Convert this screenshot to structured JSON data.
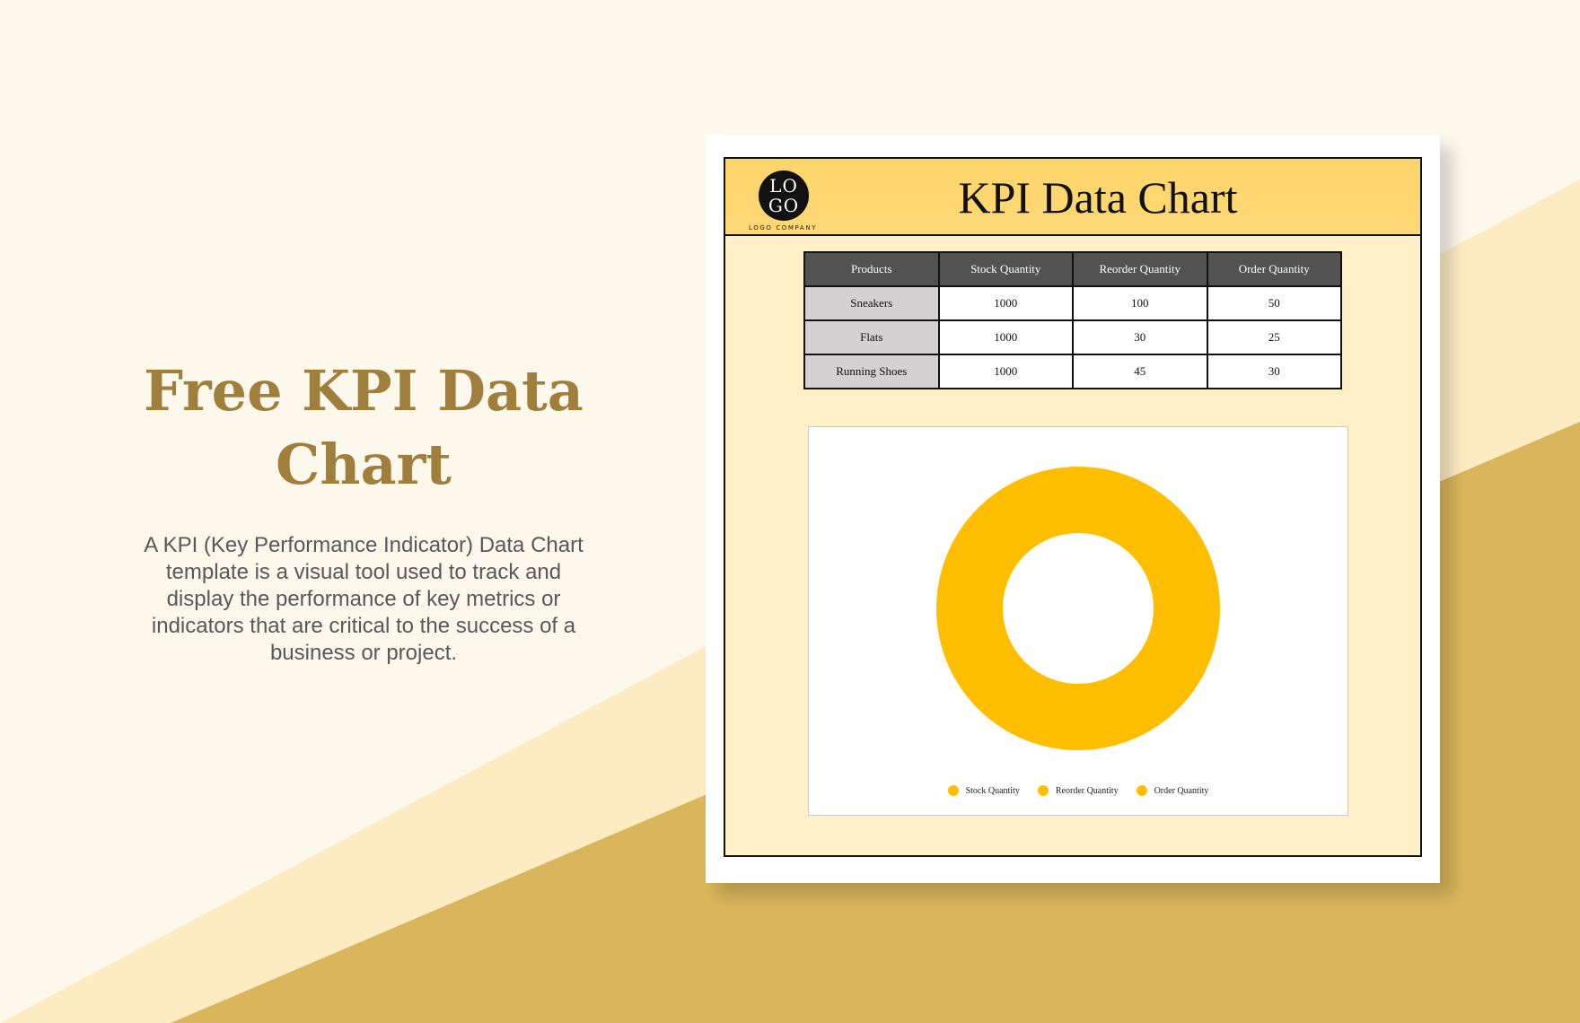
{
  "promo": {
    "title_line1": "Free KPI Data",
    "title_line2": "Chart",
    "description": "A KPI (Key Performance Indicator) Data Chart template is a visual tool used to track and display the performance of key metrics or indicators that are critical to the success of a business or project."
  },
  "colors": {
    "background": "#fdf8ec",
    "accent_gold": "#d9b55b",
    "title_gold": "#a07e3c",
    "header_yellow": "#fed56a",
    "donut_yellow": "#ffbf00"
  },
  "document": {
    "logo_line1": "LO",
    "logo_line2": "GO",
    "logo_company": "LOGO COMPANY",
    "title": "KPI Data Chart"
  },
  "table": {
    "headers": [
      "Products",
      "Stock Quantity",
      "Reorder Quantity",
      "Order Quantity"
    ],
    "rows": [
      {
        "label": "Sneakers",
        "cells": [
          "1000",
          "100",
          "50"
        ]
      },
      {
        "label": "Flats",
        "cells": [
          "1000",
          "30",
          "25"
        ]
      },
      {
        "label": "Running Shoes",
        "cells": [
          "1000",
          "45",
          "30"
        ]
      }
    ]
  },
  "chart_data": {
    "type": "pie",
    "donut": true,
    "categories": [
      "Stock Quantity",
      "Reorder Quantity",
      "Order Quantity"
    ],
    "values": [
      1,
      0,
      0
    ],
    "colors": [
      "#ffbf00",
      "#ffbf00",
      "#ffbf00"
    ],
    "legend_position": "bottom",
    "legend": [
      "Stock Quantity",
      "Reorder Quantity",
      "Order Quantity"
    ]
  }
}
